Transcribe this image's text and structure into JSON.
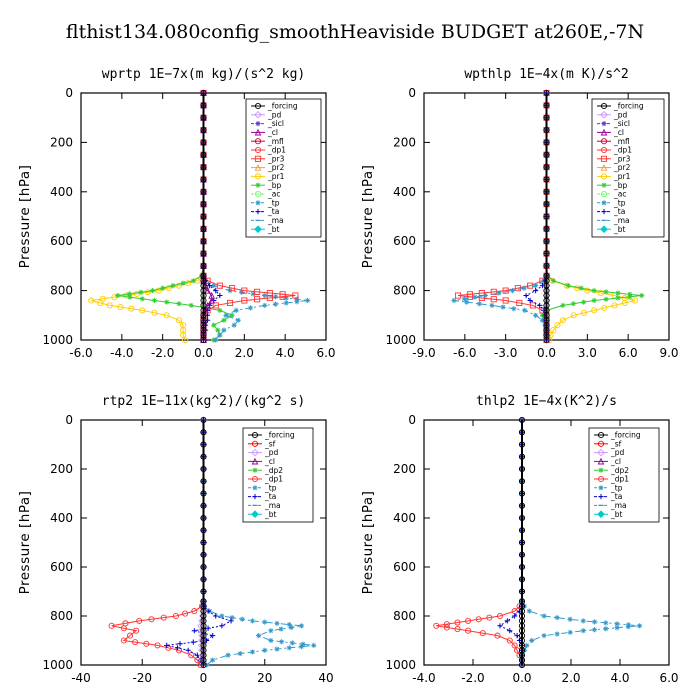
{
  "title": "flthist134.080config_smoothHeaviside  BUDGET at260E,-7N",
  "colors": {
    "forcing": "#000000",
    "sf": "#ff0000",
    "pd": "#cc99ff",
    "sicl": "#6633cc",
    "cl": "#990099",
    "mfl": "#cc0033",
    "dp1": "#ff3333",
    "dp2": "#33cc33",
    "pr3": "#ff3333",
    "pr2": "#ff9933",
    "pr1": "#ffcc00",
    "bp": "#33cc33",
    "ac": "#66ff66",
    "tp": "#3399cc",
    "ta": "#0000cc",
    "ma": "#3399cc",
    "bt": "#00cccc"
  },
  "chart_data": [
    {
      "type": "line",
      "title": "wprtp  1E−7x(m kg)/(s^2 kg)",
      "ylabel": "Pressure [hPa]",
      "xlim": [
        -6,
        6
      ],
      "ylim": [
        1000,
        0
      ],
      "xticks": [
        -6,
        -4,
        -2,
        0,
        2,
        4,
        6
      ],
      "xtick_labels": [
        "-6.0",
        "-4.0",
        "-2.0",
        "0.0",
        "2.0",
        "4.0",
        "6.0"
      ],
      "yticks": [
        0,
        200,
        400,
        600,
        800,
        1000
      ],
      "ytick_labels": [
        "0",
        "200",
        "400",
        "600",
        "800",
        "1000"
      ],
      "legend": [
        "_forcing",
        "_pd",
        "_sicl",
        "_cl",
        "_mfl",
        "_dp1",
        "_pr3",
        "_pr2",
        "_pr1",
        "_bp",
        "_ac",
        "_tp",
        "_ta",
        "_ma",
        "_bt"
      ],
      "pressure": [
        0,
        100,
        200,
        300,
        400,
        500,
        600,
        700,
        740,
        760,
        780,
        800,
        820,
        840,
        860,
        880,
        900,
        920,
        940,
        960,
        980,
        1000
      ],
      "series": [
        {
          "key": "pr1",
          "values": [
            0,
            0,
            0,
            0,
            0,
            0,
            0,
            0,
            0,
            -0.3,
            -1.2,
            -2.2,
            -3.8,
            -5.5,
            -4.6,
            -3,
            -1.8,
            -1.2,
            -1,
            -1,
            -1,
            -0.9
          ]
        },
        {
          "key": "bp",
          "values": [
            0,
            0,
            0,
            0,
            0,
            0,
            0,
            0,
            -0.1,
            -0.5,
            -1.5,
            -2.5,
            -4.2,
            -2.4,
            -0.6,
            0.8,
            1.4,
            1,
            0.5,
            0.7,
            0.8,
            0.5
          ]
        },
        {
          "key": "tp",
          "values": [
            0,
            0,
            0,
            0,
            0,
            0,
            0,
            0,
            0,
            0.1,
            0.5,
            1.3,
            3,
            5.1,
            3,
            1.6,
            1.1,
            1.7,
            1.5,
            1,
            0.8,
            0.6
          ]
        },
        {
          "key": "pr3",
          "values": [
            0,
            0,
            0,
            0,
            0,
            0,
            0,
            0,
            0,
            0.2,
            0.8,
            2,
            4.5,
            2,
            0.6,
            0.2,
            0,
            0,
            0,
            0,
            0,
            0
          ]
        },
        {
          "key": "ta",
          "values": [
            0,
            0,
            0,
            0,
            0,
            0,
            0,
            0,
            0,
            0.1,
            0.3,
            0.6,
            0.8,
            0.5,
            0.3,
            0.2,
            0.2,
            0.2,
            0.1,
            0.1,
            0,
            0
          ]
        },
        {
          "key": "cl",
          "values": [
            0,
            0,
            0,
            0,
            0,
            0,
            0,
            0,
            0,
            0,
            0.1,
            0.2,
            0.4,
            0.4,
            0.2,
            0.1,
            0,
            0,
            0,
            0,
            0,
            0
          ]
        },
        {
          "key": "forcing",
          "values": [
            0,
            0,
            0,
            0,
            0,
            0,
            0,
            0,
            0,
            0,
            0,
            0,
            0,
            0,
            0,
            0,
            0,
            0,
            0,
            0,
            0,
            0
          ]
        }
      ]
    },
    {
      "type": "line",
      "title": "wpthlp  1E−4x(m K)/s^2",
      "ylabel": "Pressure [hPa]",
      "xlim": [
        -9,
        9
      ],
      "ylim": [
        1000,
        0
      ],
      "xticks": [
        -9,
        -6,
        -3,
        0,
        3,
        6,
        9
      ],
      "xtick_labels": [
        "-9.0",
        "-6.0",
        "-3.0",
        "0.0",
        "3.0",
        "6.0",
        "9.0"
      ],
      "yticks": [
        0,
        200,
        400,
        600,
        800,
        1000
      ],
      "ytick_labels": [
        "0",
        "200",
        "400",
        "600",
        "800",
        "1000"
      ],
      "legend": [
        "_forcing",
        "_pd",
        "_sicl",
        "_cl",
        "_mfl",
        "_dp1",
        "_pr3",
        "_pr2",
        "_pr1",
        "_bp",
        "_ac",
        "_tp",
        "_ta",
        "_ma",
        "_bt"
      ],
      "pressure": [
        0,
        100,
        200,
        300,
        400,
        500,
        600,
        700,
        740,
        760,
        780,
        800,
        820,
        840,
        860,
        880,
        900,
        920,
        940,
        960,
        980,
        1000
      ],
      "series": [
        {
          "key": "pr1",
          "values": [
            0,
            0,
            0,
            0,
            0,
            0,
            0,
            0,
            0,
            0.4,
            1.5,
            3,
            5,
            6.5,
            5,
            3.5,
            2,
            1.2,
            0.8,
            0.5,
            0.3,
            0.2
          ]
        },
        {
          "key": "bp",
          "values": [
            0,
            0,
            0,
            0,
            0,
            0,
            0,
            0,
            0.1,
            0.5,
            1.6,
            3.5,
            7,
            3.5,
            1.2,
            0,
            -0.3,
            -0.2,
            0,
            0,
            0,
            0
          ]
        },
        {
          "key": "pr3",
          "values": [
            0,
            0,
            0,
            0,
            0,
            0,
            0,
            0,
            0,
            -0.3,
            -1.2,
            -3,
            -6.5,
            -3,
            -1,
            -0.3,
            0,
            0,
            0,
            0,
            0,
            0
          ]
        },
        {
          "key": "tp",
          "values": [
            0,
            0,
            0,
            0,
            0,
            0,
            0,
            0,
            0,
            -0.2,
            -0.8,
            -2.5,
            -4.5,
            -6.8,
            -4,
            -1.6,
            -0.8,
            -0.3,
            -0.1,
            0,
            0,
            0
          ]
        },
        {
          "key": "ta",
          "values": [
            0,
            0,
            0,
            0,
            0,
            0,
            0,
            0,
            0,
            -0.1,
            -0.3,
            -0.8,
            -1.5,
            -1.2,
            -0.5,
            -0.2,
            -0.1,
            0,
            0,
            0,
            0,
            0
          ]
        },
        {
          "key": "pd",
          "values": [
            0,
            0,
            0,
            0,
            0,
            0,
            0,
            0,
            0,
            0,
            0,
            0,
            0,
            0,
            0,
            0,
            0,
            0,
            0,
            0,
            0,
            0
          ]
        },
        {
          "key": "forcing",
          "values": [
            0,
            0,
            0,
            0,
            0,
            0,
            0,
            0,
            0,
            0,
            0,
            0,
            0,
            0,
            0,
            0,
            0,
            0,
            0,
            0,
            0,
            0
          ]
        }
      ]
    },
    {
      "type": "line",
      "title": "rtp2  1E−11x(kg^2)/(kg^2 s)",
      "ylabel": "Pressure [hPa]",
      "xlim": [
        -40,
        40
      ],
      "ylim": [
        1000,
        0
      ],
      "xticks": [
        -40,
        -20,
        0,
        20,
        40
      ],
      "xtick_labels": [
        "-40",
        "-20",
        "0",
        "20",
        "40"
      ],
      "yticks": [
        0,
        200,
        400,
        600,
        800,
        1000
      ],
      "ytick_labels": [
        "0",
        "200",
        "400",
        "600",
        "800",
        "1000"
      ],
      "legend": [
        "_forcing",
        "_sf",
        "_pd",
        "_cl",
        "_dp2",
        "_dp1",
        "_tp",
        "_ta",
        "_ma",
        "_bt"
      ],
      "pressure": [
        0,
        100,
        200,
        300,
        400,
        500,
        600,
        700,
        740,
        760,
        780,
        800,
        820,
        840,
        860,
        880,
        900,
        920,
        940,
        960,
        980,
        1000
      ],
      "series": [
        {
          "key": "dp1",
          "values": [
            0,
            0,
            0,
            0,
            0,
            0,
            0,
            0,
            0,
            -0.5,
            -3,
            -9,
            -21,
            -30,
            -22,
            -24,
            -26,
            -15,
            -8,
            -4,
            -2,
            -1
          ]
        },
        {
          "key": "tp",
          "values": [
            0,
            0,
            0,
            0,
            0,
            0,
            0,
            0,
            0,
            0.3,
            2,
            6,
            16,
            32,
            22,
            18,
            22,
            36,
            20,
            8,
            3,
            1
          ]
        },
        {
          "key": "ta",
          "values": [
            0,
            0,
            0,
            0,
            0,
            0,
            0,
            0,
            0,
            0.3,
            1.5,
            4,
            9,
            6,
            -3,
            3,
            1,
            -12,
            -5,
            -2,
            -1,
            0
          ]
        },
        {
          "key": "pd",
          "values": [
            0,
            0,
            0,
            0,
            0,
            0,
            0,
            0,
            0,
            0,
            0,
            -0.2,
            -0.5,
            -0.8,
            -0.6,
            -0.5,
            -0.5,
            -0.6,
            -0.5,
            -0.3,
            -0.2,
            -0.1
          ]
        },
        {
          "key": "forcing",
          "values": [
            0,
            0,
            0,
            0,
            0,
            0,
            0,
            0,
            0,
            0,
            0,
            0,
            0,
            0,
            0,
            0,
            0,
            0,
            0,
            0,
            0,
            0
          ]
        }
      ]
    },
    {
      "type": "line",
      "title": "thlp2  1E−4x(K^2)/s",
      "ylabel": "Pressure [hPa]",
      "xlim": [
        -4,
        6
      ],
      "ylim": [
        1000,
        0
      ],
      "xticks": [
        -4,
        -2,
        0,
        2,
        4,
        6
      ],
      "xtick_labels": [
        "-4.0",
        "-2.0",
        "0.0",
        "2.0",
        "4.0",
        "6.0"
      ],
      "yticks": [
        0,
        200,
        400,
        600,
        800,
        1000
      ],
      "ytick_labels": [
        "0",
        "200",
        "400",
        "600",
        "800",
        "1000"
      ],
      "legend": [
        "_forcing",
        "_sf",
        "_pd",
        "_cl",
        "_dp2",
        "_dp1",
        "_tp",
        "_ta",
        "_ma",
        "_bt"
      ],
      "pressure": [
        0,
        100,
        200,
        300,
        400,
        500,
        600,
        700,
        740,
        760,
        780,
        800,
        820,
        840,
        860,
        880,
        900,
        920,
        940,
        960,
        980,
        1000
      ],
      "series": [
        {
          "key": "dp1",
          "values": [
            0,
            0,
            0,
            0,
            0,
            0,
            0,
            0,
            0,
            -0.1,
            -0.3,
            -0.9,
            -2.2,
            -3.5,
            -2.2,
            -1,
            -0.5,
            -0.3,
            -0.2,
            -0.1,
            0,
            0
          ]
        },
        {
          "key": "tp",
          "values": [
            0,
            0,
            0,
            0,
            0,
            0,
            0,
            0,
            0,
            0.1,
            0.3,
            0.9,
            2.5,
            4.8,
            2.5,
            0.9,
            0.4,
            0.2,
            0.1,
            0,
            0,
            0
          ]
        },
        {
          "key": "ta",
          "values": [
            0,
            0,
            0,
            0,
            0,
            0,
            0,
            0,
            0,
            0,
            -0.1,
            -0.3,
            -0.6,
            -0.9,
            -0.5,
            -0.2,
            -0.1,
            0,
            0,
            0,
            0,
            0
          ]
        },
        {
          "key": "forcing",
          "values": [
            0,
            0,
            0,
            0,
            0,
            0,
            0,
            0,
            0,
            0,
            0,
            0,
            0,
            0,
            0,
            0,
            0,
            0,
            0,
            0,
            0,
            0
          ]
        }
      ]
    }
  ]
}
